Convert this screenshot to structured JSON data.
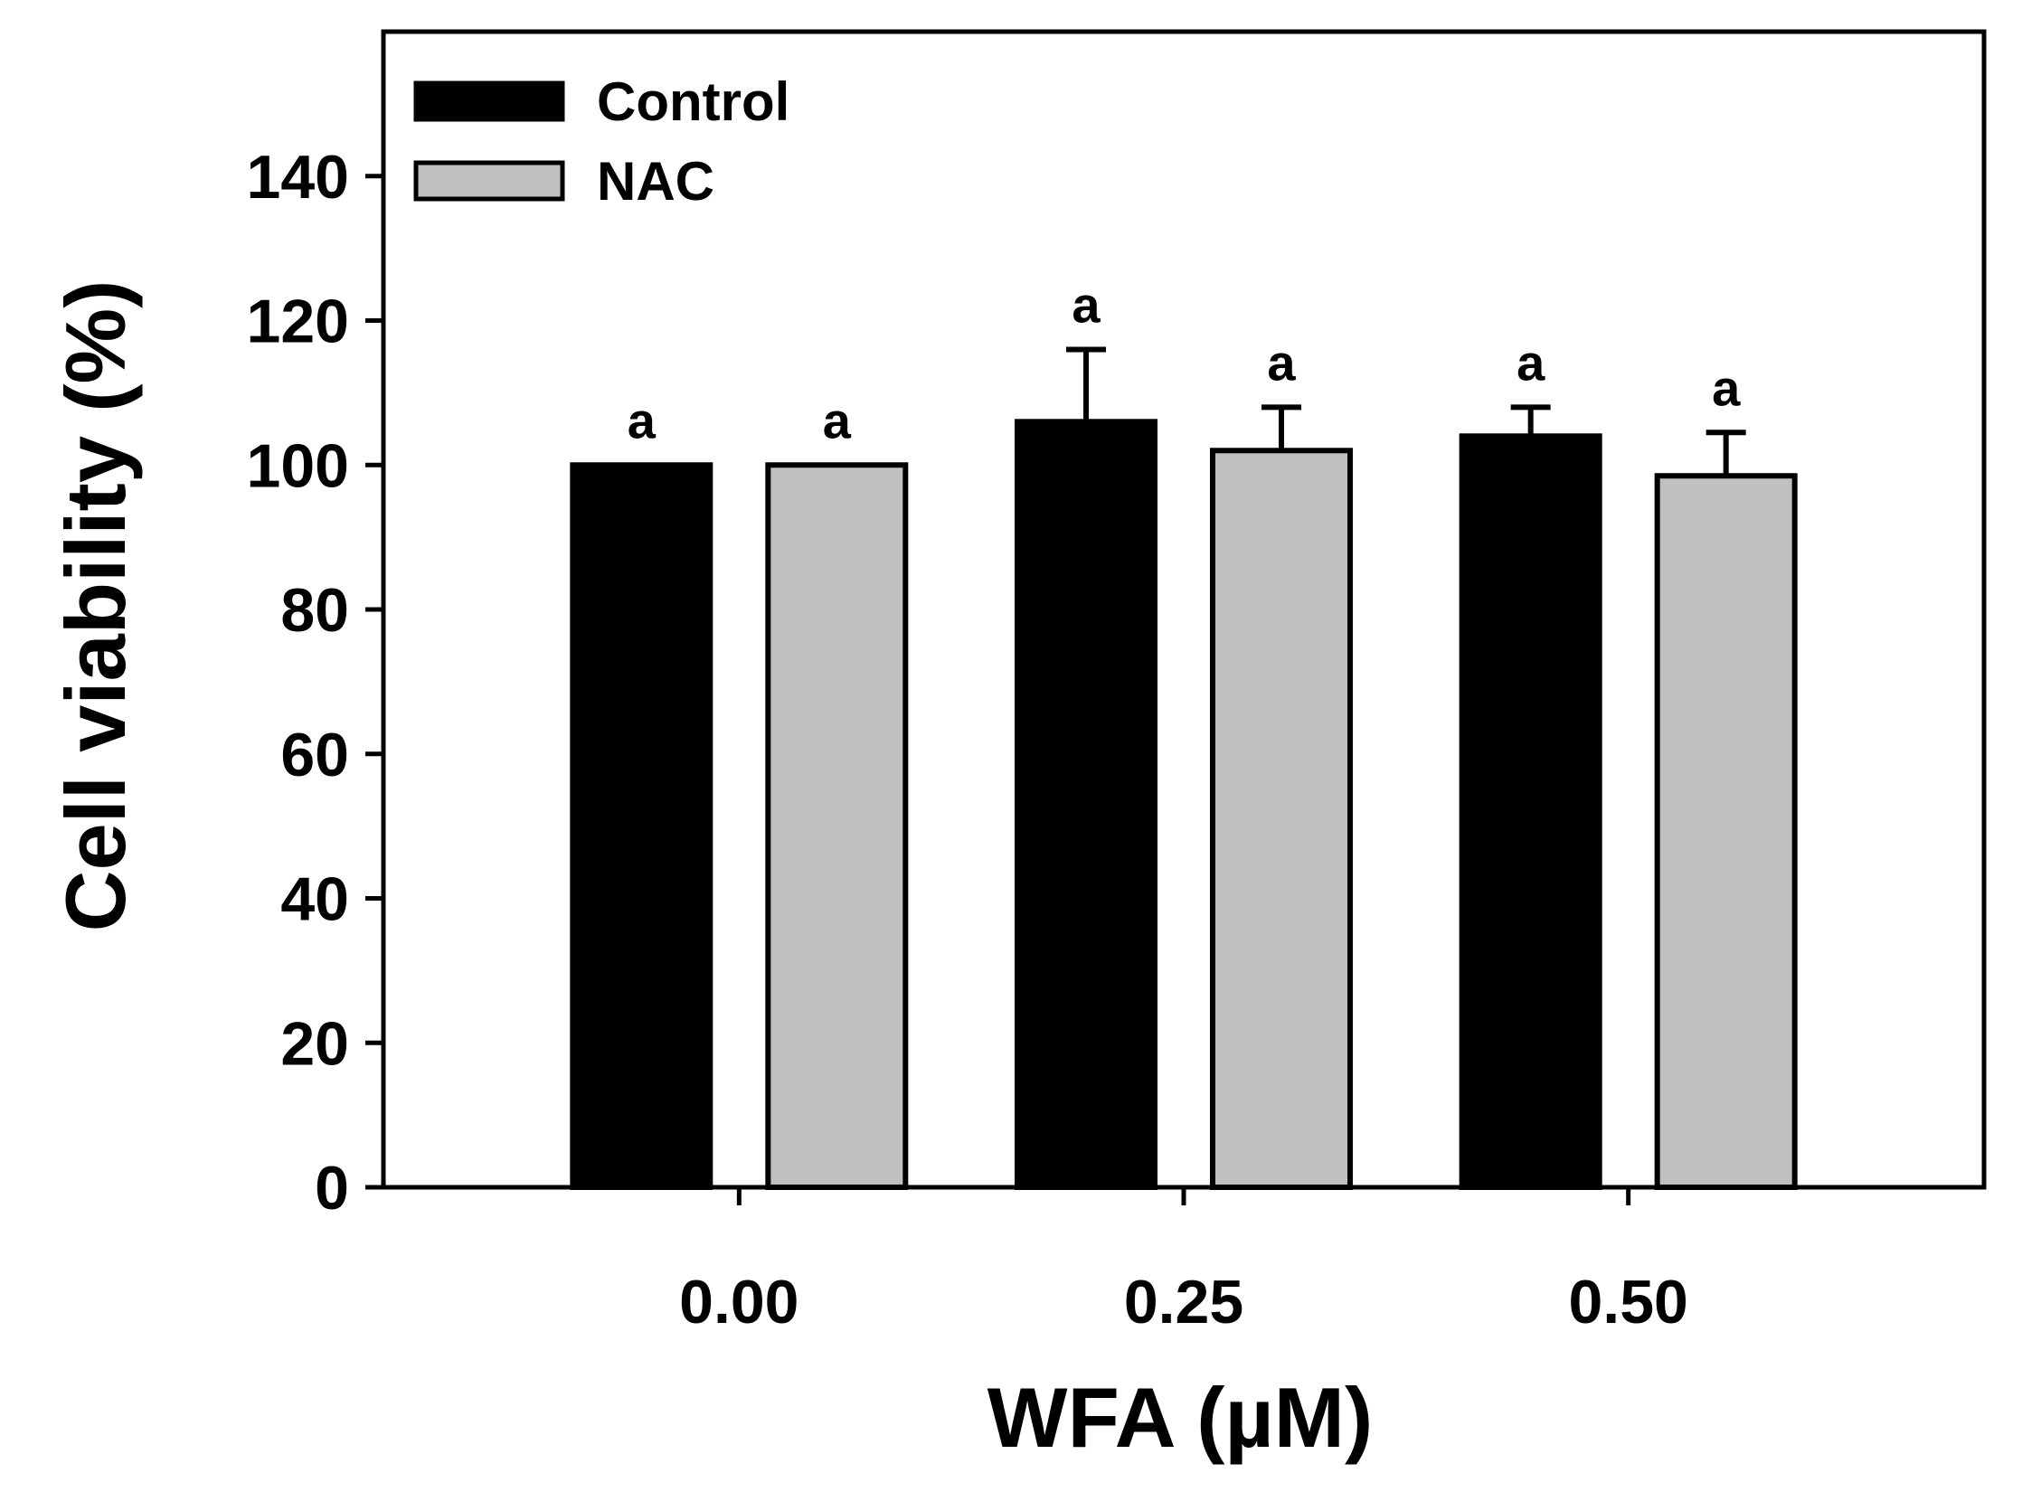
{
  "chart_data": {
    "type": "bar",
    "categories": [
      "0.00",
      "0.25",
      "0.50"
    ],
    "series": [
      {
        "name": "Control",
        "values": [
          100,
          106,
          104
        ],
        "errors": [
          0,
          10,
          4
        ],
        "labels": [
          "a",
          "a",
          "a"
        ],
        "color": "#000000"
      },
      {
        "name": "NAC",
        "values": [
          100,
          102,
          98.5
        ],
        "errors": [
          0,
          6,
          6
        ],
        "labels": [
          "a",
          "a",
          "a"
        ],
        "color": "#c0c0c0"
      }
    ],
    "xlabel": "WFA (µM)",
    "ylabel": "Cell viability (%)",
    "ylim": [
      0,
      160
    ],
    "yticks": [
      0,
      20,
      40,
      60,
      80,
      100,
      120,
      140
    ],
    "legend_position": "top-left",
    "grid": false
  }
}
